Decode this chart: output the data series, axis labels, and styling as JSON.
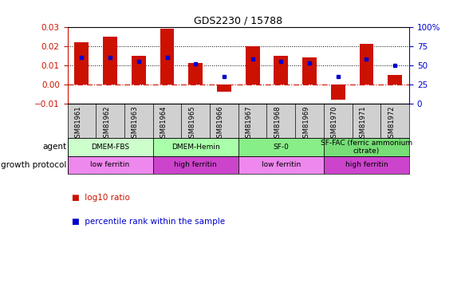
{
  "title": "GDS2230 / 15788",
  "samples": [
    "GSM81961",
    "GSM81962",
    "GSM81963",
    "GSM81964",
    "GSM81965",
    "GSM81966",
    "GSM81967",
    "GSM81968",
    "GSM81969",
    "GSM81970",
    "GSM81971",
    "GSM81972"
  ],
  "log10_ratio": [
    0.022,
    0.025,
    0.015,
    0.029,
    0.011,
    -0.004,
    0.02,
    0.015,
    0.014,
    -0.008,
    0.021,
    0.005
  ],
  "percentile_rank": [
    60,
    60,
    55,
    60,
    52,
    35,
    58,
    55,
    53,
    35,
    58,
    50
  ],
  "ylim_left": [
    -0.01,
    0.03
  ],
  "ylim_right": [
    0,
    100
  ],
  "yticks_left": [
    -0.01,
    0,
    0.01,
    0.02,
    0.03
  ],
  "yticks_right": [
    0,
    25,
    50,
    75,
    100
  ],
  "bar_color": "#cc1100",
  "dot_color": "#0000cc",
  "agent_groups": [
    {
      "label": "DMEM-FBS",
      "start": 0,
      "end": 3,
      "color": "#ccffcc"
    },
    {
      "label": "DMEM-Hemin",
      "start": 3,
      "end": 6,
      "color": "#aaffaa"
    },
    {
      "label": "SF-0",
      "start": 6,
      "end": 9,
      "color": "#88ee88"
    },
    {
      "label": "SF-FAC (ferric ammonium\ncitrate)",
      "start": 9,
      "end": 12,
      "color": "#77dd77"
    }
  ],
  "growth_groups": [
    {
      "label": "low ferritin",
      "start": 0,
      "end": 3,
      "color": "#ee88ee"
    },
    {
      "label": "high ferritin",
      "start": 3,
      "end": 6,
      "color": "#cc44cc"
    },
    {
      "label": "low ferritin",
      "start": 6,
      "end": 9,
      "color": "#ee88ee"
    },
    {
      "label": "high ferritin",
      "start": 9,
      "end": 12,
      "color": "#cc44cc"
    }
  ],
  "legend_bar_label": "log10 ratio",
  "legend_dot_label": "percentile rank within the sample",
  "agent_label": "agent",
  "growth_label": "growth protocol",
  "bar_width": 0.5,
  "xtick_bg": "#d0d0d0"
}
